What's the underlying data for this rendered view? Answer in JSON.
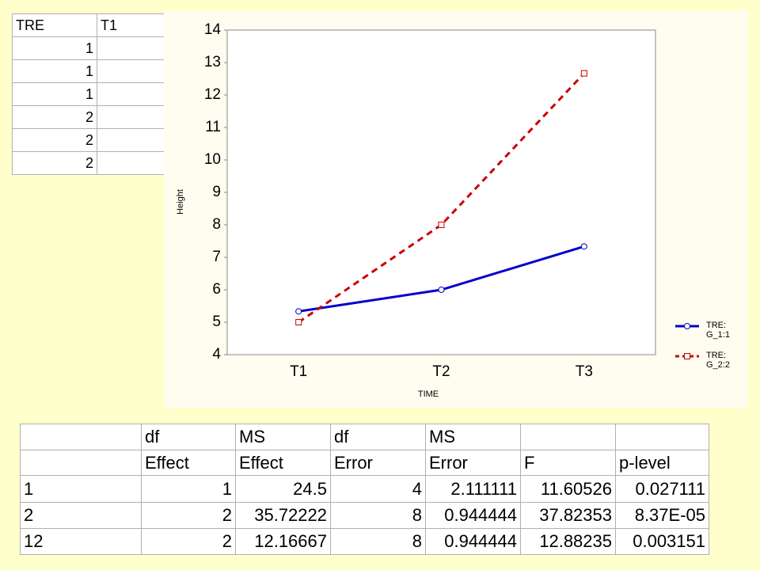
{
  "top_table": {
    "header": [
      "TRE",
      "T1"
    ],
    "rows": [
      "1",
      "1",
      "1",
      "2",
      "2",
      "2"
    ]
  },
  "chart_data": {
    "type": "line",
    "xlabel": "TIME",
    "ylabel": "Height",
    "categories": [
      "T1",
      "T2",
      "T3"
    ],
    "series": [
      {
        "name": "TRE: G_1:1",
        "color": "#0000cc",
        "dash": false,
        "marker": "circle",
        "values": [
          5.333,
          6.0,
          7.333
        ]
      },
      {
        "name": "TRE: G_2:2",
        "color": "#cc0000",
        "dash": true,
        "marker": "square",
        "values": [
          5.0,
          8.0,
          12.667
        ]
      }
    ],
    "ylim": [
      4,
      14
    ],
    "yticks": [
      4,
      5,
      6,
      7,
      8,
      9,
      10,
      11,
      12,
      13,
      14
    ],
    "grid": false,
    "legend": "lower-right-outside"
  },
  "anova_table": {
    "columns": [
      {
        "top": "df",
        "bottom": "Effect"
      },
      {
        "top": "MS",
        "bottom": "Effect"
      },
      {
        "top": "df",
        "bottom": "Error"
      },
      {
        "top": "MS",
        "bottom": "Error"
      },
      {
        "bottom": "F"
      },
      {
        "bottom": "p-level"
      }
    ],
    "rows": [
      {
        "label": "1",
        "cells": [
          "1",
          "24.5",
          "4",
          "2.111111",
          "11.60526",
          "0.027111"
        ]
      },
      {
        "label": "2",
        "cells": [
          "2",
          "35.72222",
          "8",
          "0.944444",
          "37.82353",
          "8.37E-05"
        ]
      },
      {
        "label": "12",
        "cells": [
          "2",
          "12.16667",
          "8",
          "0.944444",
          "12.88235",
          "0.003151"
        ]
      }
    ]
  }
}
